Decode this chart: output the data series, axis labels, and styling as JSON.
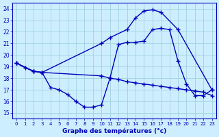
{
  "xlabel": "Graphe des températures (°c)",
  "bg_color": "#cceeff",
  "line_color": "#0000bb",
  "grid_color": "#99ccdd",
  "yticks": [
    15,
    16,
    17,
    18,
    19,
    20,
    21,
    22,
    23,
    24
  ],
  "xticks": [
    0,
    1,
    2,
    3,
    4,
    5,
    6,
    7,
    8,
    9,
    10,
    11,
    12,
    13,
    14,
    15,
    16,
    17,
    18,
    19,
    20,
    21,
    22,
    23
  ],
  "line1_x": [
    0,
    2,
    3,
    10,
    11,
    13,
    14,
    15,
    16,
    17,
    19,
    23
  ],
  "line1_y": [
    19.3,
    18.6,
    18.5,
    21.0,
    21.5,
    22.2,
    23.2,
    23.8,
    23.9,
    23.7,
    22.2,
    17.0
  ],
  "line2_x": [
    0,
    2,
    3,
    10,
    11,
    12,
    13,
    14,
    15,
    16,
    17,
    18,
    19,
    20,
    21,
    22,
    23
  ],
  "line2_y": [
    19.3,
    18.6,
    18.5,
    18.2,
    18.0,
    17.9,
    17.7,
    17.6,
    17.5,
    17.4,
    17.3,
    17.2,
    17.1,
    17.0,
    16.9,
    16.8,
    16.5
  ],
  "line3_x": [
    0,
    1,
    2,
    3,
    4,
    5,
    6,
    7,
    8,
    9,
    10,
    11,
    12,
    13,
    14,
    15,
    16,
    17,
    18,
    19,
    20,
    21,
    22,
    23
  ],
  "line3_y": [
    19.3,
    18.9,
    18.6,
    18.5,
    17.2,
    17.0,
    16.6,
    16.0,
    15.5,
    15.5,
    15.7,
    18.0,
    20.9,
    21.1,
    21.1,
    21.2,
    22.2,
    22.3,
    22.2,
    19.5,
    17.5,
    16.5,
    16.5,
    17.0
  ],
  "marker": "+",
  "markersize": 4.0,
  "markeredgewidth": 1.0,
  "linewidth": 1.0
}
